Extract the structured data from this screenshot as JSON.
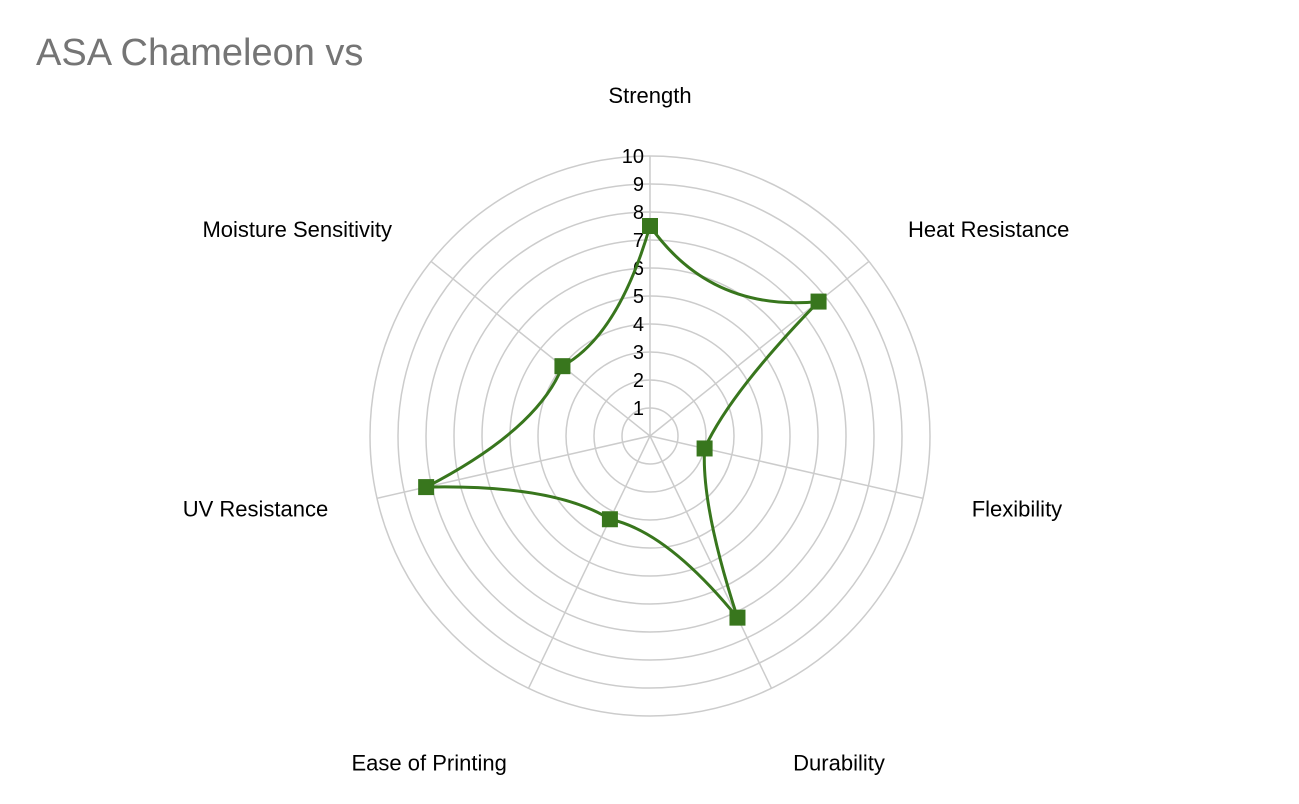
{
  "chart_data": {
    "type": "radar",
    "title": "ASA Chameleon vs",
    "axes": [
      "Strength",
      "Heat Resistance",
      "Flexibility",
      "Durability",
      "Ease of Printing",
      "UV Resistance",
      "Moisture Sensitivity"
    ],
    "ticks": [
      "1",
      "2",
      "3",
      "4",
      "5",
      "6",
      "7",
      "8",
      "9",
      "10"
    ],
    "rlim": [
      0,
      10
    ],
    "grid": true,
    "series": [
      {
        "values": [
          7.5,
          7.7,
          2,
          7.2,
          3.3,
          8.2,
          4.0
        ],
        "color": "#38761d"
      }
    ]
  }
}
